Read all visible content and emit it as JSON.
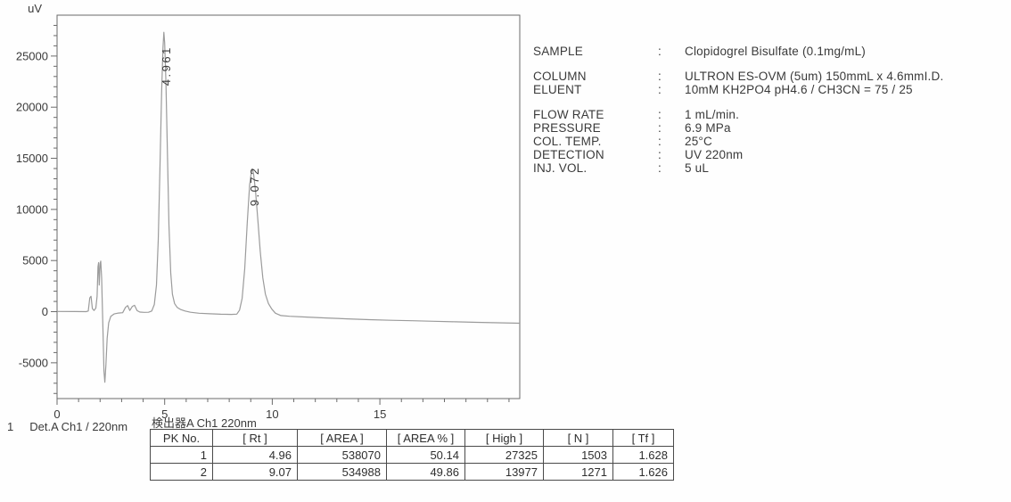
{
  "chart_data": {
    "type": "line",
    "title": "",
    "xlabel": "",
    "ylabel": "uV",
    "xlim": [
      0,
      21.5
    ],
    "ylim": [
      -8500,
      29000
    ],
    "grid": false,
    "legend_position": "none",
    "x_major_ticks": [
      0,
      5,
      10,
      15
    ],
    "x_minor_step": 1,
    "y_major_ticks": [
      -5000,
      0,
      5000,
      10000,
      15000,
      20000,
      25000
    ],
    "y_minor_step": 1000,
    "peaks": [
      {
        "rt": 4.961,
        "height_uv": 27325,
        "label": "4.961",
        "label_dy": 60
      },
      {
        "rt": 9.072,
        "height_uv": 13977,
        "label": "9.072",
        "label_dy": 42
      }
    ],
    "series": [
      {
        "name": "Det.A Ch1 / 220nm",
        "points": [
          [
            0,
            20
          ],
          [
            0.8,
            10
          ],
          [
            1.35,
            0
          ],
          [
            1.45,
            60
          ],
          [
            1.52,
            1350
          ],
          [
            1.58,
            1500
          ],
          [
            1.64,
            300
          ],
          [
            1.72,
            120
          ],
          [
            1.8,
            350
          ],
          [
            1.86,
            1500
          ],
          [
            1.9,
            4400
          ],
          [
            1.93,
            4800
          ],
          [
            1.96,
            2600
          ],
          [
            2.0,
            4700
          ],
          [
            2.03,
            4950
          ],
          [
            2.07,
            3300
          ],
          [
            2.1,
            900
          ],
          [
            2.14,
            -2500
          ],
          [
            2.18,
            -5800
          ],
          [
            2.22,
            -6900
          ],
          [
            2.27,
            -5200
          ],
          [
            2.33,
            -2600
          ],
          [
            2.4,
            -1100
          ],
          [
            2.5,
            -450
          ],
          [
            2.65,
            -220
          ],
          [
            2.85,
            -140
          ],
          [
            3.05,
            -100
          ],
          [
            3.18,
            420
          ],
          [
            3.28,
            600
          ],
          [
            3.38,
            120
          ],
          [
            3.5,
            520
          ],
          [
            3.6,
            620
          ],
          [
            3.72,
            100
          ],
          [
            3.85,
            -40
          ],
          [
            4.05,
            -70
          ],
          [
            4.25,
            -60
          ],
          [
            4.4,
            60
          ],
          [
            4.52,
            700
          ],
          [
            4.62,
            2600
          ],
          [
            4.7,
            7000
          ],
          [
            4.78,
            14000
          ],
          [
            4.86,
            21500
          ],
          [
            4.92,
            25800
          ],
          [
            4.961,
            27325
          ],
          [
            5.0,
            26300
          ],
          [
            5.06,
            22500
          ],
          [
            5.13,
            15500
          ],
          [
            5.2,
            8500
          ],
          [
            5.28,
            3800
          ],
          [
            5.36,
            1700
          ],
          [
            5.46,
            800
          ],
          [
            5.58,
            420
          ],
          [
            5.75,
            200
          ],
          [
            5.95,
            60
          ],
          [
            6.2,
            -60
          ],
          [
            6.6,
            -150
          ],
          [
            7.1,
            -210
          ],
          [
            7.6,
            -250
          ],
          [
            8.1,
            -270
          ],
          [
            8.35,
            -240
          ],
          [
            8.48,
            150
          ],
          [
            8.6,
            1300
          ],
          [
            8.72,
            4200
          ],
          [
            8.84,
            8800
          ],
          [
            8.95,
            12400
          ],
          [
            9.03,
            13700
          ],
          [
            9.072,
            13977
          ],
          [
            9.13,
            13500
          ],
          [
            9.22,
            11800
          ],
          [
            9.33,
            9000
          ],
          [
            9.44,
            5900
          ],
          [
            9.56,
            3300
          ],
          [
            9.68,
            1700
          ],
          [
            9.82,
            800
          ],
          [
            9.98,
            250
          ],
          [
            10.15,
            -150
          ],
          [
            10.4,
            -380
          ],
          [
            10.8,
            -450
          ],
          [
            11.5,
            -520
          ],
          [
            12.5,
            -620
          ],
          [
            13.5,
            -700
          ],
          [
            14.5,
            -780
          ],
          [
            15.5,
            -840
          ],
          [
            16.5,
            -890
          ],
          [
            17.5,
            -940
          ],
          [
            18.5,
            -990
          ],
          [
            19.5,
            -1040
          ],
          [
            20.5,
            -1090
          ],
          [
            21.5,
            -1130
          ]
        ]
      }
    ]
  },
  "info_panel": {
    "separator": ":",
    "rows": [
      {
        "label": "SAMPLE",
        "value": "Clopidogrel Bisulfate (0.1mg/mL)"
      },
      {
        "label": "COLUMN",
        "value": "ULTRON ES-OVM (5um) 150mmL x 4.6mmI.D."
      },
      {
        "label": "ELUENT",
        "value": "10mM KH2PO4  pH4.6 / CH3CN = 75 / 25"
      },
      {
        "label": "FLOW RATE",
        "value": "1 mL/min."
      },
      {
        "label": "PRESSURE",
        "value": "6.9 MPa"
      },
      {
        "label": "COL. TEMP.",
        "value": "25°C"
      },
      {
        "label": "DETECTION",
        "value": "UV  220nm"
      },
      {
        "label": "INJ. VOL.",
        "value": "5 uL"
      }
    ]
  },
  "footer": {
    "channel_line": {
      "index": "1",
      "label": "Det.A Ch1 / 220nm"
    },
    "table_title": "検出器A Ch1 220nm",
    "table": {
      "headers": [
        "PK No.",
        "[ Rt ]",
        "[ AREA ]",
        "[ AREA % ]",
        "[ High ]",
        "[ N ]",
        "[ Tf ]"
      ],
      "rows": [
        [
          "1",
          "4.96",
          "538070",
          "50.14",
          "27325",
          "1503",
          "1.628"
        ],
        [
          "2",
          "9.07",
          "534988",
          "49.86",
          "13977",
          "1271",
          "1.626"
        ]
      ]
    }
  },
  "colors": {
    "trace": "#9b9b9b",
    "axis": "#6b6b6b",
    "text": "#3a3a3a",
    "table_border": "#4a4a4a"
  }
}
